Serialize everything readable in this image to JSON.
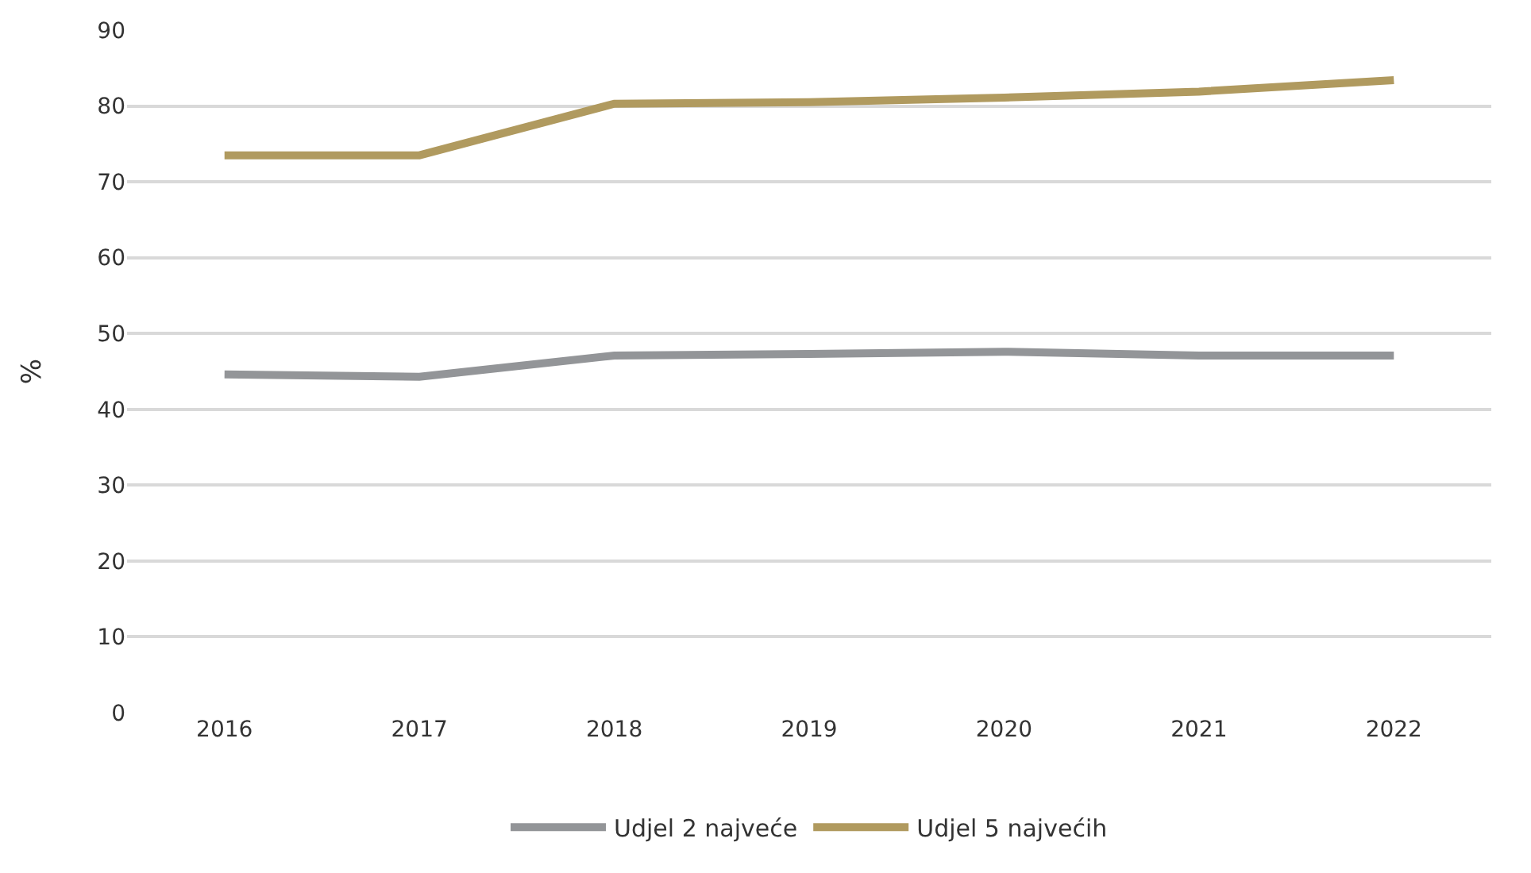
{
  "chart_data": {
    "type": "line",
    "ylabel": "%",
    "categories": [
      "2016",
      "2017",
      "2018",
      "2019",
      "2020",
      "2021",
      "2022"
    ],
    "series": [
      {
        "name": "Udjel 2 najveće",
        "color": "#939598",
        "values": [
          44.6,
          44.3,
          47.1,
          47.3,
          47.6,
          47.1,
          47.1
        ]
      },
      {
        "name": "Udjel 5 najvećih",
        "color": "#b09a5f",
        "values": [
          73.5,
          73.5,
          80.3,
          80.5,
          81.1,
          81.9,
          83.4
        ]
      }
    ],
    "ylim": [
      0,
      90
    ],
    "yticks": [
      0,
      10,
      20,
      30,
      40,
      50,
      60,
      70,
      80,
      90
    ],
    "grid": "y",
    "legend": "bottom",
    "marker": "none",
    "line_style": "solid"
  }
}
